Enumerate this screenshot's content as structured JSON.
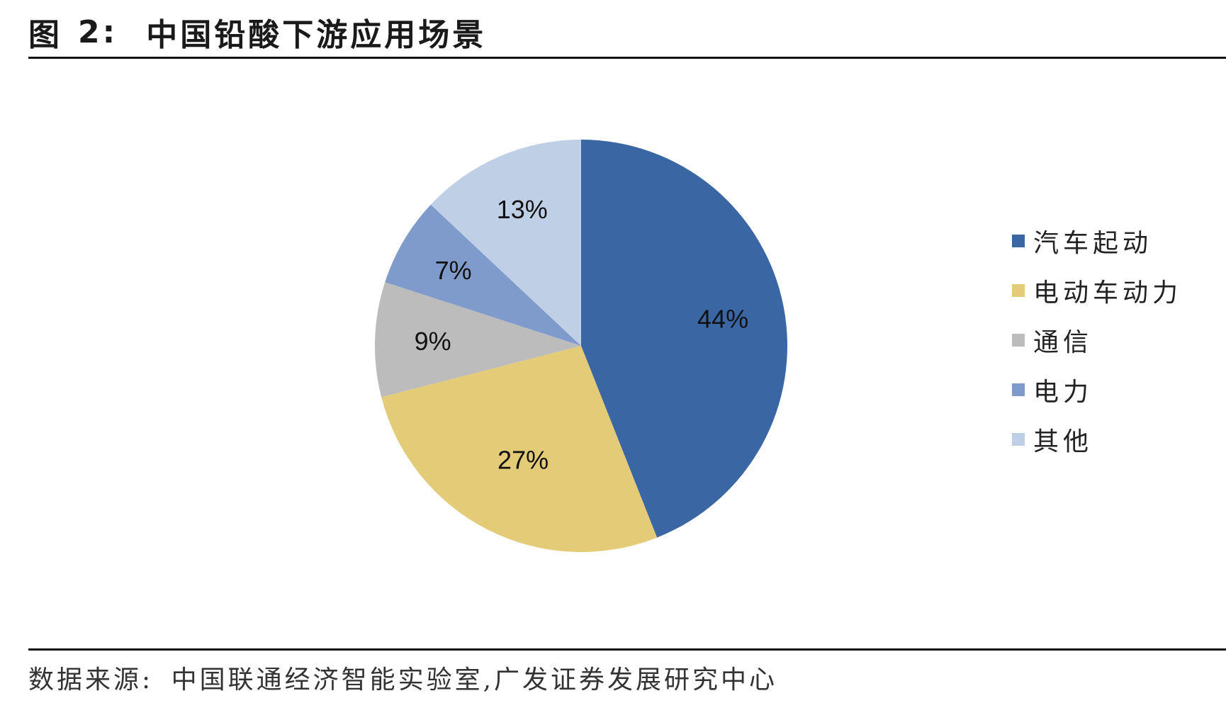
{
  "figure": {
    "label": "图",
    "number": "2:",
    "title": "中国铅酸下游应用场景"
  },
  "source": {
    "label": "数据来源:",
    "text": "中国联通经济智能实验室,广发证券发展研究中心"
  },
  "chart_data": {
    "type": "pie",
    "title": "中国铅酸下游应用场景",
    "start_angle_deg": 0,
    "direction": "clockwise",
    "legend_position": "right",
    "slices": [
      {
        "label": "汽车起动",
        "value": 44,
        "display": "44%",
        "color": "#3a67a3"
      },
      {
        "label": "电动车动力",
        "value": 27,
        "display": "27%",
        "color": "#e4cb77"
      },
      {
        "label": "通信",
        "value": 9,
        "display": "9%",
        "color": "#bcbcbc"
      },
      {
        "label": "电力",
        "value": 7,
        "display": "7%",
        "color": "#7f9bcb"
      },
      {
        "label": "其他",
        "value": 13,
        "display": "13%",
        "color": "#bfcfe6"
      }
    ]
  }
}
